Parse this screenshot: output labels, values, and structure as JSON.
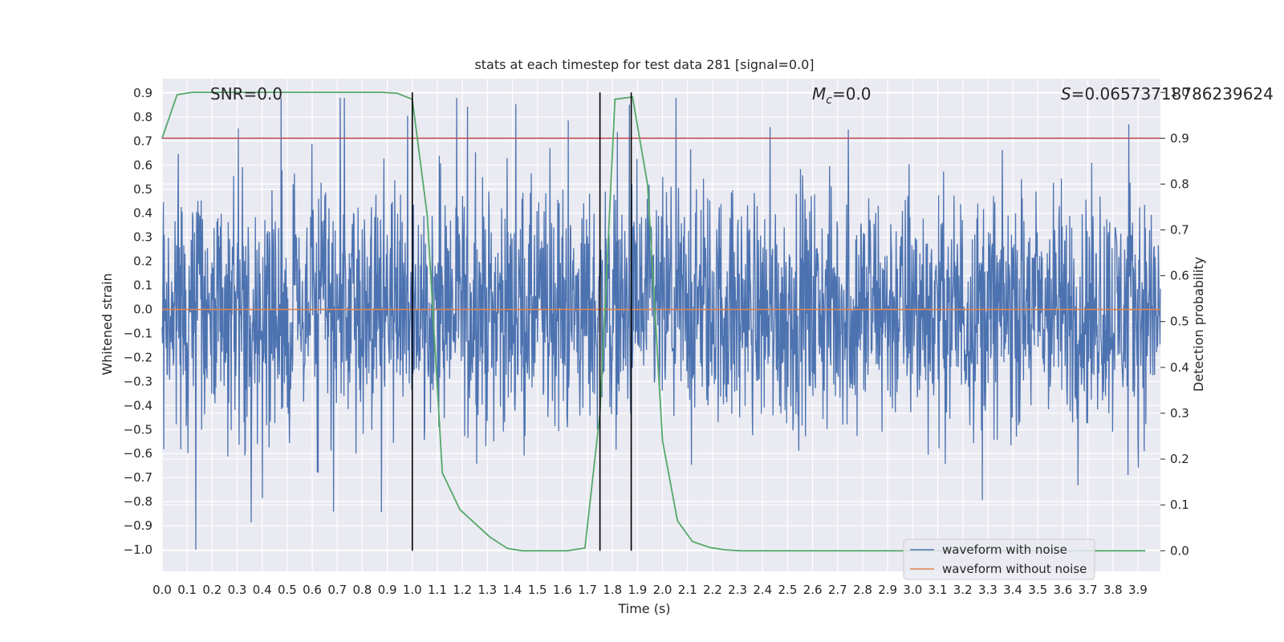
{
  "chart_data": {
    "type": "line",
    "title": "stats at each timestep for test data 281 [signal=0.0]",
    "xlabel": "Time (s)",
    "ylabel": "Whitened strain",
    "y2label": "Detection probability",
    "xlim": [
      0.0,
      3.99
    ],
    "ylim": [
      -1.09,
      0.96
    ],
    "y2lim": [
      -0.045,
      1.03
    ],
    "x_ticks": [
      0.0,
      0.1,
      0.2,
      0.3,
      0.4,
      0.5,
      0.6,
      0.7,
      0.8,
      0.9,
      1.0,
      1.1,
      1.2,
      1.3,
      1.4,
      1.5,
      1.6,
      1.7,
      1.8,
      1.9,
      2.0,
      2.1,
      2.2,
      2.3,
      2.4,
      2.5,
      2.6,
      2.7,
      2.8,
      2.9,
      3.0,
      3.1,
      3.2,
      3.3,
      3.4,
      3.5,
      3.6,
      3.7,
      3.8,
      3.9
    ],
    "y_ticks": [
      0.9,
      0.8,
      0.7,
      0.6,
      0.5,
      0.4,
      0.3,
      0.2,
      0.1,
      0.0,
      -0.1,
      -0.2,
      -0.3,
      -0.4,
      -0.5,
      -0.6,
      -0.7,
      -0.8,
      -0.9,
      -1.0
    ],
    "y2_ticks": [
      1.0,
      0.9,
      0.8,
      0.7,
      0.6,
      0.5,
      0.4,
      0.3,
      0.2,
      0.1,
      0.0
    ],
    "grid": true,
    "legend_position": "lower-right",
    "annotations": {
      "snr": "SNR=0.0",
      "mc_symbol": "M",
      "mc_sub": "c",
      "mc_value": "=0.0",
      "s_symbol": "S",
      "s_value": "=0.06573718786239624"
    },
    "series": [
      {
        "name": "waveform with noise",
        "axis": "left",
        "color": "#4c72b0",
        "note_type": "noise",
        "x_range": [
          0.0,
          3.99
        ],
        "envelope": [
          -1.0,
          0.88
        ]
      },
      {
        "name": "waveform without noise",
        "axis": "left",
        "color": "#dd8452",
        "x": [
          0.0,
          3.99
        ],
        "y": [
          0.0,
          0.0
        ]
      },
      {
        "axis": "right",
        "color": "#55a868",
        "x": [
          0.0,
          0.06,
          0.12,
          0.19,
          0.25,
          0.31,
          0.38,
          0.44,
          0.5,
          0.56,
          0.62,
          0.69,
          0.75,
          0.81,
          0.88,
          0.94,
          1.0,
          1.06,
          1.12,
          1.19,
          1.25,
          1.31,
          1.38,
          1.44,
          1.5,
          1.56,
          1.62,
          1.69,
          1.75,
          1.81,
          1.88,
          1.94,
          2.0,
          2.06,
          2.12,
          2.19,
          2.25,
          2.31,
          2.5,
          2.75,
          3.0,
          3.25,
          3.5,
          3.75,
          3.93
        ],
        "y": [
          0.9,
          0.995,
          1.0,
          1.0,
          1.0,
          1.0,
          1.0,
          1.0,
          1.0,
          1.0,
          1.0,
          1.0,
          1.0,
          1.0,
          1.0,
          0.998,
          0.985,
          0.73,
          0.17,
          0.09,
          0.06,
          0.03,
          0.005,
          0.0,
          0.0,
          0.0,
          0.0,
          0.006,
          0.3,
          0.985,
          0.99,
          0.8,
          0.24,
          0.065,
          0.02,
          0.007,
          0.002,
          0.0,
          0.0,
          0.0,
          0.0,
          0.0,
          0.0,
          0.0,
          0.0
        ]
      },
      {
        "axis": "right",
        "color": "#c44e52",
        "x": [
          0.0,
          3.99
        ],
        "y": [
          0.9,
          0.9
        ]
      }
    ],
    "vertical_lines": [
      {
        "x": 1.0,
        "y2_range": [
          0.0,
          1.0
        ],
        "color": "#000000"
      },
      {
        "x": 1.75,
        "y2_range": [
          0.0,
          1.0
        ],
        "color": "#000000"
      },
      {
        "x": 1.875,
        "y2_range": [
          0.0,
          1.0
        ],
        "color": "#000000"
      }
    ],
    "colors": {
      "plot_background": "#eaeaf2",
      "grid": "#ffffff",
      "text": "#262626"
    }
  }
}
